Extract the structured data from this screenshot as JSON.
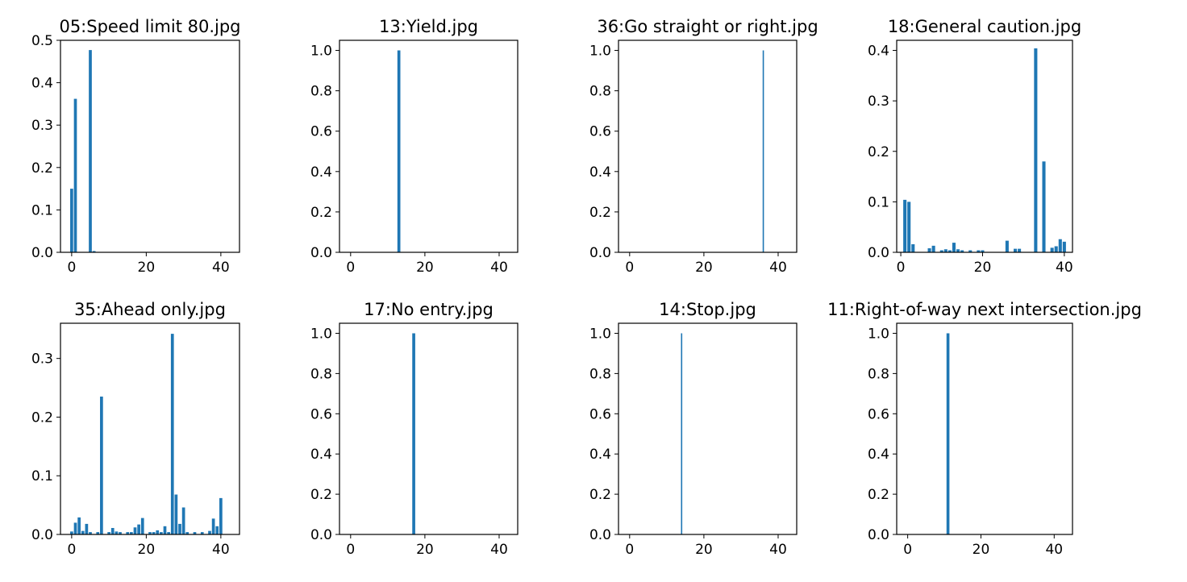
{
  "figure": {
    "colors": {
      "bar": "#1f77b4",
      "axis": "#000000",
      "background": "#ffffff"
    }
  },
  "chart_data": [
    {
      "type": "bar",
      "title": "05:Speed limit 80.jpg",
      "xlim": [
        -3,
        45
      ],
      "ylim": [
        0,
        0.5
      ],
      "xticks": [
        0,
        20,
        40
      ],
      "yticks": [
        0.0,
        0.1,
        0.2,
        0.3,
        0.4,
        0.5
      ],
      "xtick_labels": [
        "0",
        "20",
        "40"
      ],
      "ytick_labels": [
        "0.0",
        "0.1",
        "0.2",
        "0.3",
        "0.4",
        "0.5"
      ],
      "bar_width": 0.8,
      "x": [
        0,
        1,
        5,
        6
      ],
      "values": [
        0.15,
        0.362,
        0.477,
        0.003
      ],
      "grid": false
    },
    {
      "type": "bar",
      "title": "13:Yield.jpg",
      "xlim": [
        -3,
        45
      ],
      "ylim": [
        0,
        1.05
      ],
      "xticks": [
        0,
        20,
        40
      ],
      "yticks": [
        0.0,
        0.2,
        0.4,
        0.6,
        0.8,
        1.0
      ],
      "xtick_labels": [
        "0",
        "20",
        "40"
      ],
      "ytick_labels": [
        "0.0",
        "0.2",
        "0.4",
        "0.6",
        "0.8",
        "1.0"
      ],
      "bar_width": 0.8,
      "x": [
        13
      ],
      "values": [
        1.0
      ],
      "grid": false
    },
    {
      "type": "bar",
      "title": "36:Go straight or right.jpg",
      "xlim": [
        -3,
        45
      ],
      "ylim": [
        0,
        1.05
      ],
      "xticks": [
        0,
        20,
        40
      ],
      "yticks": [
        0.0,
        0.2,
        0.4,
        0.6,
        0.8,
        1.0
      ],
      "xtick_labels": [
        "0",
        "20",
        "40"
      ],
      "ytick_labels": [
        "0.0",
        "0.2",
        "0.4",
        "0.6",
        "0.8",
        "1.0"
      ],
      "bar_width": 0.35,
      "x": [
        36
      ],
      "values": [
        1.0
      ],
      "grid": false
    },
    {
      "type": "bar",
      "title": "18:General caution.jpg",
      "xlim": [
        -1,
        42
      ],
      "ylim": [
        0,
        0.42
      ],
      "xticks": [
        0,
        20,
        40
      ],
      "yticks": [
        0.0,
        0.1,
        0.2,
        0.3,
        0.4
      ],
      "xtick_labels": [
        "0",
        "20",
        "40"
      ],
      "ytick_labels": [
        "0.0",
        "0.1",
        "0.2",
        "0.3",
        "0.4"
      ],
      "bar_width": 0.8,
      "x": [
        1,
        2,
        3,
        7,
        8,
        10,
        11,
        12,
        13,
        14,
        15,
        17,
        19,
        20,
        26,
        28,
        29,
        33,
        35,
        37,
        38,
        39,
        40
      ],
      "values": [
        0.104,
        0.1,
        0.016,
        0.008,
        0.013,
        0.004,
        0.006,
        0.004,
        0.019,
        0.006,
        0.004,
        0.004,
        0.004,
        0.004,
        0.023,
        0.007,
        0.007,
        0.404,
        0.18,
        0.009,
        0.012,
        0.026,
        0.021
      ],
      "grid": false
    },
    {
      "type": "bar",
      "title": "35:Ahead only.jpg",
      "xlim": [
        -3,
        45
      ],
      "ylim": [
        0,
        0.36
      ],
      "xticks": [
        0,
        20,
        40
      ],
      "yticks": [
        0.0,
        0.1,
        0.2,
        0.3
      ],
      "xtick_labels": [
        "0",
        "20",
        "40"
      ],
      "ytick_labels": [
        "0.0",
        "0.1",
        "0.2",
        "0.3"
      ],
      "bar_width": 0.8,
      "x": [
        0,
        1,
        2,
        3,
        4,
        5,
        7,
        8,
        10,
        11,
        12,
        13,
        15,
        16,
        17,
        18,
        19,
        21,
        22,
        23,
        24,
        25,
        26,
        27,
        28,
        29,
        30,
        31,
        33,
        35,
        37,
        38,
        39,
        40
      ],
      "values": [
        0.005,
        0.02,
        0.029,
        0.006,
        0.018,
        0.004,
        0.004,
        0.235,
        0.004,
        0.011,
        0.005,
        0.004,
        0.004,
        0.004,
        0.012,
        0.017,
        0.028,
        0.004,
        0.004,
        0.007,
        0.004,
        0.014,
        0.004,
        0.342,
        0.068,
        0.018,
        0.046,
        0.004,
        0.004,
        0.004,
        0.006,
        0.027,
        0.014,
        0.062
      ],
      "grid": false
    },
    {
      "type": "bar",
      "title": "17:No entry.jpg",
      "xlim": [
        -3,
        45
      ],
      "ylim": [
        0,
        1.05
      ],
      "xticks": [
        0,
        20,
        40
      ],
      "yticks": [
        0.0,
        0.2,
        0.4,
        0.6,
        0.8,
        1.0
      ],
      "xtick_labels": [
        "0",
        "20",
        "40"
      ],
      "ytick_labels": [
        "0.0",
        "0.2",
        "0.4",
        "0.6",
        "0.8",
        "1.0"
      ],
      "bar_width": 0.8,
      "x": [
        17
      ],
      "values": [
        1.0
      ],
      "grid": false
    },
    {
      "type": "bar",
      "title": "14:Stop.jpg",
      "xlim": [
        -3,
        45
      ],
      "ylim": [
        0,
        1.05
      ],
      "xticks": [
        0,
        20,
        40
      ],
      "yticks": [
        0.0,
        0.2,
        0.4,
        0.6,
        0.8,
        1.0
      ],
      "xtick_labels": [
        "0",
        "20",
        "40"
      ],
      "ytick_labels": [
        "0.0",
        "0.2",
        "0.4",
        "0.6",
        "0.8",
        "1.0"
      ],
      "bar_width": 0.35,
      "x": [
        14
      ],
      "values": [
        1.0
      ],
      "grid": false
    },
    {
      "type": "bar",
      "title": "11:Right-of-way next intersection.jpg",
      "xlim": [
        -3,
        45
      ],
      "ylim": [
        0,
        1.05
      ],
      "xticks": [
        0,
        20,
        40
      ],
      "yticks": [
        0.0,
        0.2,
        0.4,
        0.6,
        0.8,
        1.0
      ],
      "xtick_labels": [
        "0",
        "20",
        "40"
      ],
      "ytick_labels": [
        "0.0",
        "0.2",
        "0.4",
        "0.6",
        "0.8",
        "1.0"
      ],
      "bar_width": 0.8,
      "x": [
        11
      ],
      "values": [
        1.0
      ],
      "grid": false
    }
  ]
}
